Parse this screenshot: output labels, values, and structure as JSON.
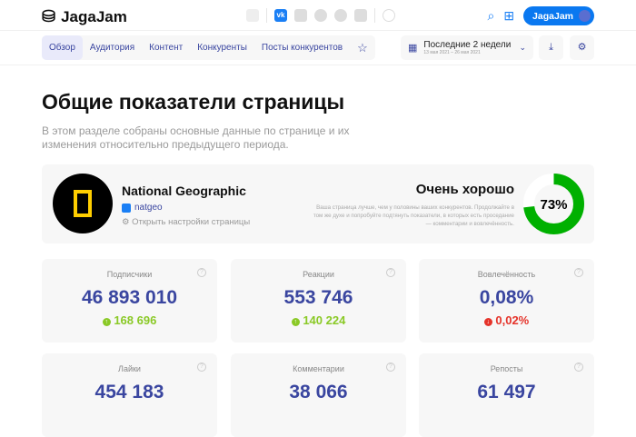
{
  "header": {
    "logo": "JagaJam",
    "user_button": "JagaJam",
    "socials": [
      "grid-icon",
      "vk-icon",
      "ok-icon",
      "telegram-icon",
      "twitter-icon",
      "youtube-icon",
      "add-icon"
    ]
  },
  "nav": {
    "tabs": [
      "Обзор",
      "Аудитория",
      "Контент",
      "Конкуренты",
      "Посты конкурентов"
    ],
    "active": "Обзор"
  },
  "date": {
    "label": "Последние 2 недели",
    "range": "13 мая 2021 – 26 мая 2021"
  },
  "page": {
    "title": "Общие показатели страницы",
    "description": "В этом разделе собраны основные данные по странице и их изменения относительно предыдущего периода."
  },
  "profile": {
    "name": "National Geographic",
    "handle": "natgeo",
    "settings": "Открыть настройки страницы",
    "rating": "Очень хорошо",
    "rating_text": "Ваша страница лучше, чем у половины ваших конкурентов. Продолжайте в том же духе и попробуйте подтянуть показатели, в которых есть проседание — комментарии и вовлечённость.",
    "score": "73%",
    "score_value": 73,
    "score_color": "#00b000"
  },
  "stats": [
    {
      "label": "Подписчики",
      "value": "46 893 010",
      "change": "168 696",
      "dir": "up"
    },
    {
      "label": "Реакции",
      "value": "553 746",
      "change": "140 224",
      "dir": "up"
    },
    {
      "label": "Вовлечённость",
      "value": "0,08%",
      "change": "0,02%",
      "dir": "down"
    },
    {
      "label": "Лайки",
      "value": "454 183"
    },
    {
      "label": "Комментарии",
      "value": "38 066"
    },
    {
      "label": "Репосты",
      "value": "61 497"
    }
  ]
}
